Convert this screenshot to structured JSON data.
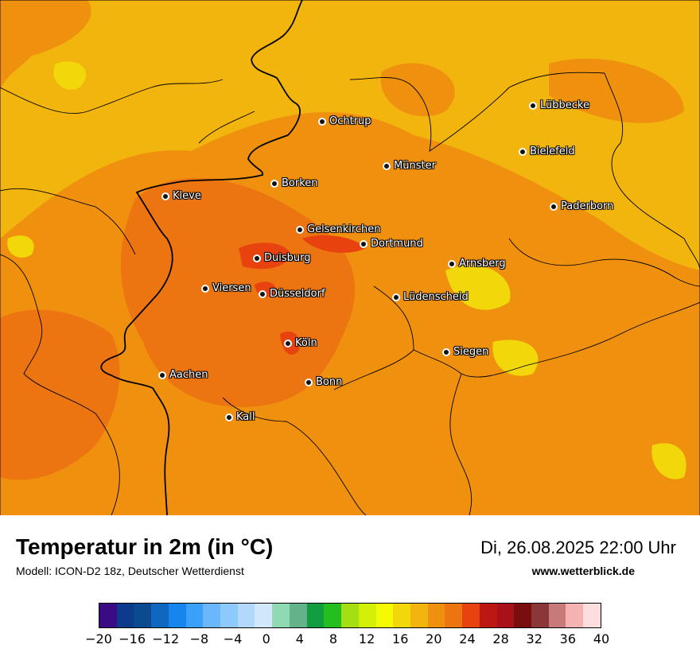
{
  "map": {
    "cities": [
      {
        "name": "Lübbecke"
      },
      {
        "name": "Ochtrup"
      },
      {
        "name": "Bielefeld"
      },
      {
        "name": "Münster"
      },
      {
        "name": "Borken"
      },
      {
        "name": "Kleve"
      },
      {
        "name": "Paderborn"
      },
      {
        "name": "Gelsenkirchen"
      },
      {
        "name": "Dortmund"
      },
      {
        "name": "Duisburg"
      },
      {
        "name": "Arnsberg"
      },
      {
        "name": "Viersen"
      },
      {
        "name": "Düsseldorf"
      },
      {
        "name": "Lüdenscheid"
      },
      {
        "name": "Köln"
      },
      {
        "name": "Siegen"
      },
      {
        "name": "Aachen"
      },
      {
        "name": "Bonn"
      },
      {
        "name": "Kall"
      }
    ],
    "field_colors": {
      "base": "#f2b50e",
      "warm": "#f0900f",
      "warmer": "#ec7511",
      "hot": "#e8420f",
      "cool": "#f2d80a"
    }
  },
  "footer": {
    "title": "Temperatur in 2m (in °C)",
    "model": "Modell: ICON-D2 18z, Deutscher Wetterdienst",
    "datetime": "Di, 26.08.2025 22:00 Uhr",
    "site": "www.wetterblick.de"
  },
  "legend": {
    "colors": [
      "#3a0b85",
      "#0d3b8c",
      "#0b4a8f",
      "#0f67c0",
      "#1686ee",
      "#3aa0fa",
      "#6ab8fb",
      "#8ec9fb",
      "#b2d9fb",
      "#d1e7fb",
      "#8fd9b3",
      "#63b28a",
      "#119e3e",
      "#22bf1f",
      "#a3df13",
      "#d4ef08",
      "#f4fa03",
      "#f2d80a",
      "#f2b50e",
      "#f0900f",
      "#ec7511",
      "#e8420f",
      "#bd1714",
      "#a8111a",
      "#7a0d0d",
      "#8c3737",
      "#c87a7a",
      "#f5b2b2",
      "#fcdede"
    ],
    "ticks": [
      "−20",
      "−16",
      "−12",
      "−8",
      "−4",
      "0",
      "4",
      "8",
      "12",
      "16",
      "20",
      "24",
      "28",
      "32",
      "36",
      "40"
    ]
  }
}
